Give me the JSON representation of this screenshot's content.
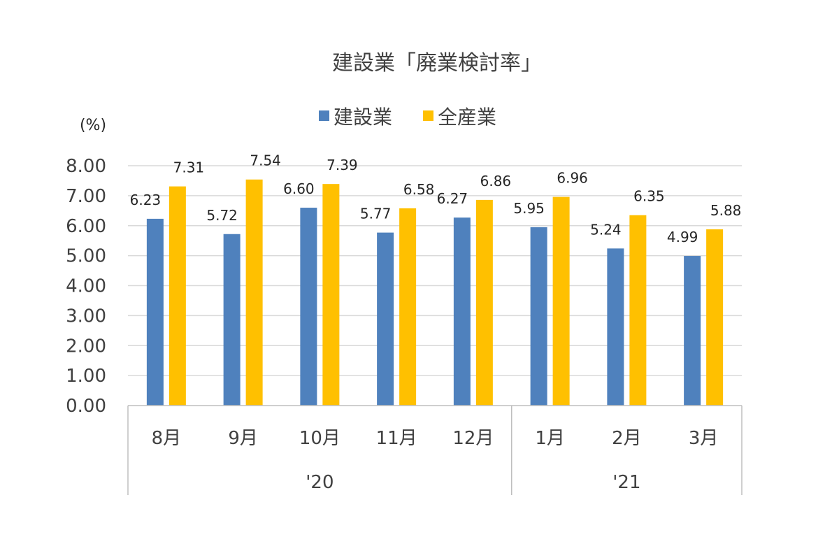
{
  "chart_data": {
    "type": "bar",
    "title": "建設業「廃業検討率」",
    "ylabel": "(%)",
    "ylim": [
      0,
      8
    ],
    "ytick_step": 1,
    "ytick_format": "0.00",
    "grid": true,
    "legend_position": "top",
    "categories": [
      "8月",
      "9月",
      "10月",
      "11月",
      "12月",
      "1月",
      "2月",
      "3月"
    ],
    "groups": [
      {
        "label": "'20",
        "categories": [
          "8月",
          "9月",
          "10月",
          "11月",
          "12月"
        ]
      },
      {
        "label": "'21",
        "categories": [
          "1月",
          "2月",
          "3月"
        ]
      }
    ],
    "series": [
      {
        "name": "建設業",
        "color": "#4f81bd",
        "values": [
          6.23,
          5.72,
          6.6,
          5.77,
          6.27,
          5.95,
          5.24,
          4.99
        ]
      },
      {
        "name": "全産業",
        "color": "#ffc000",
        "values": [
          7.31,
          7.54,
          7.39,
          6.58,
          6.86,
          6.96,
          6.35,
          5.88
        ]
      }
    ]
  }
}
